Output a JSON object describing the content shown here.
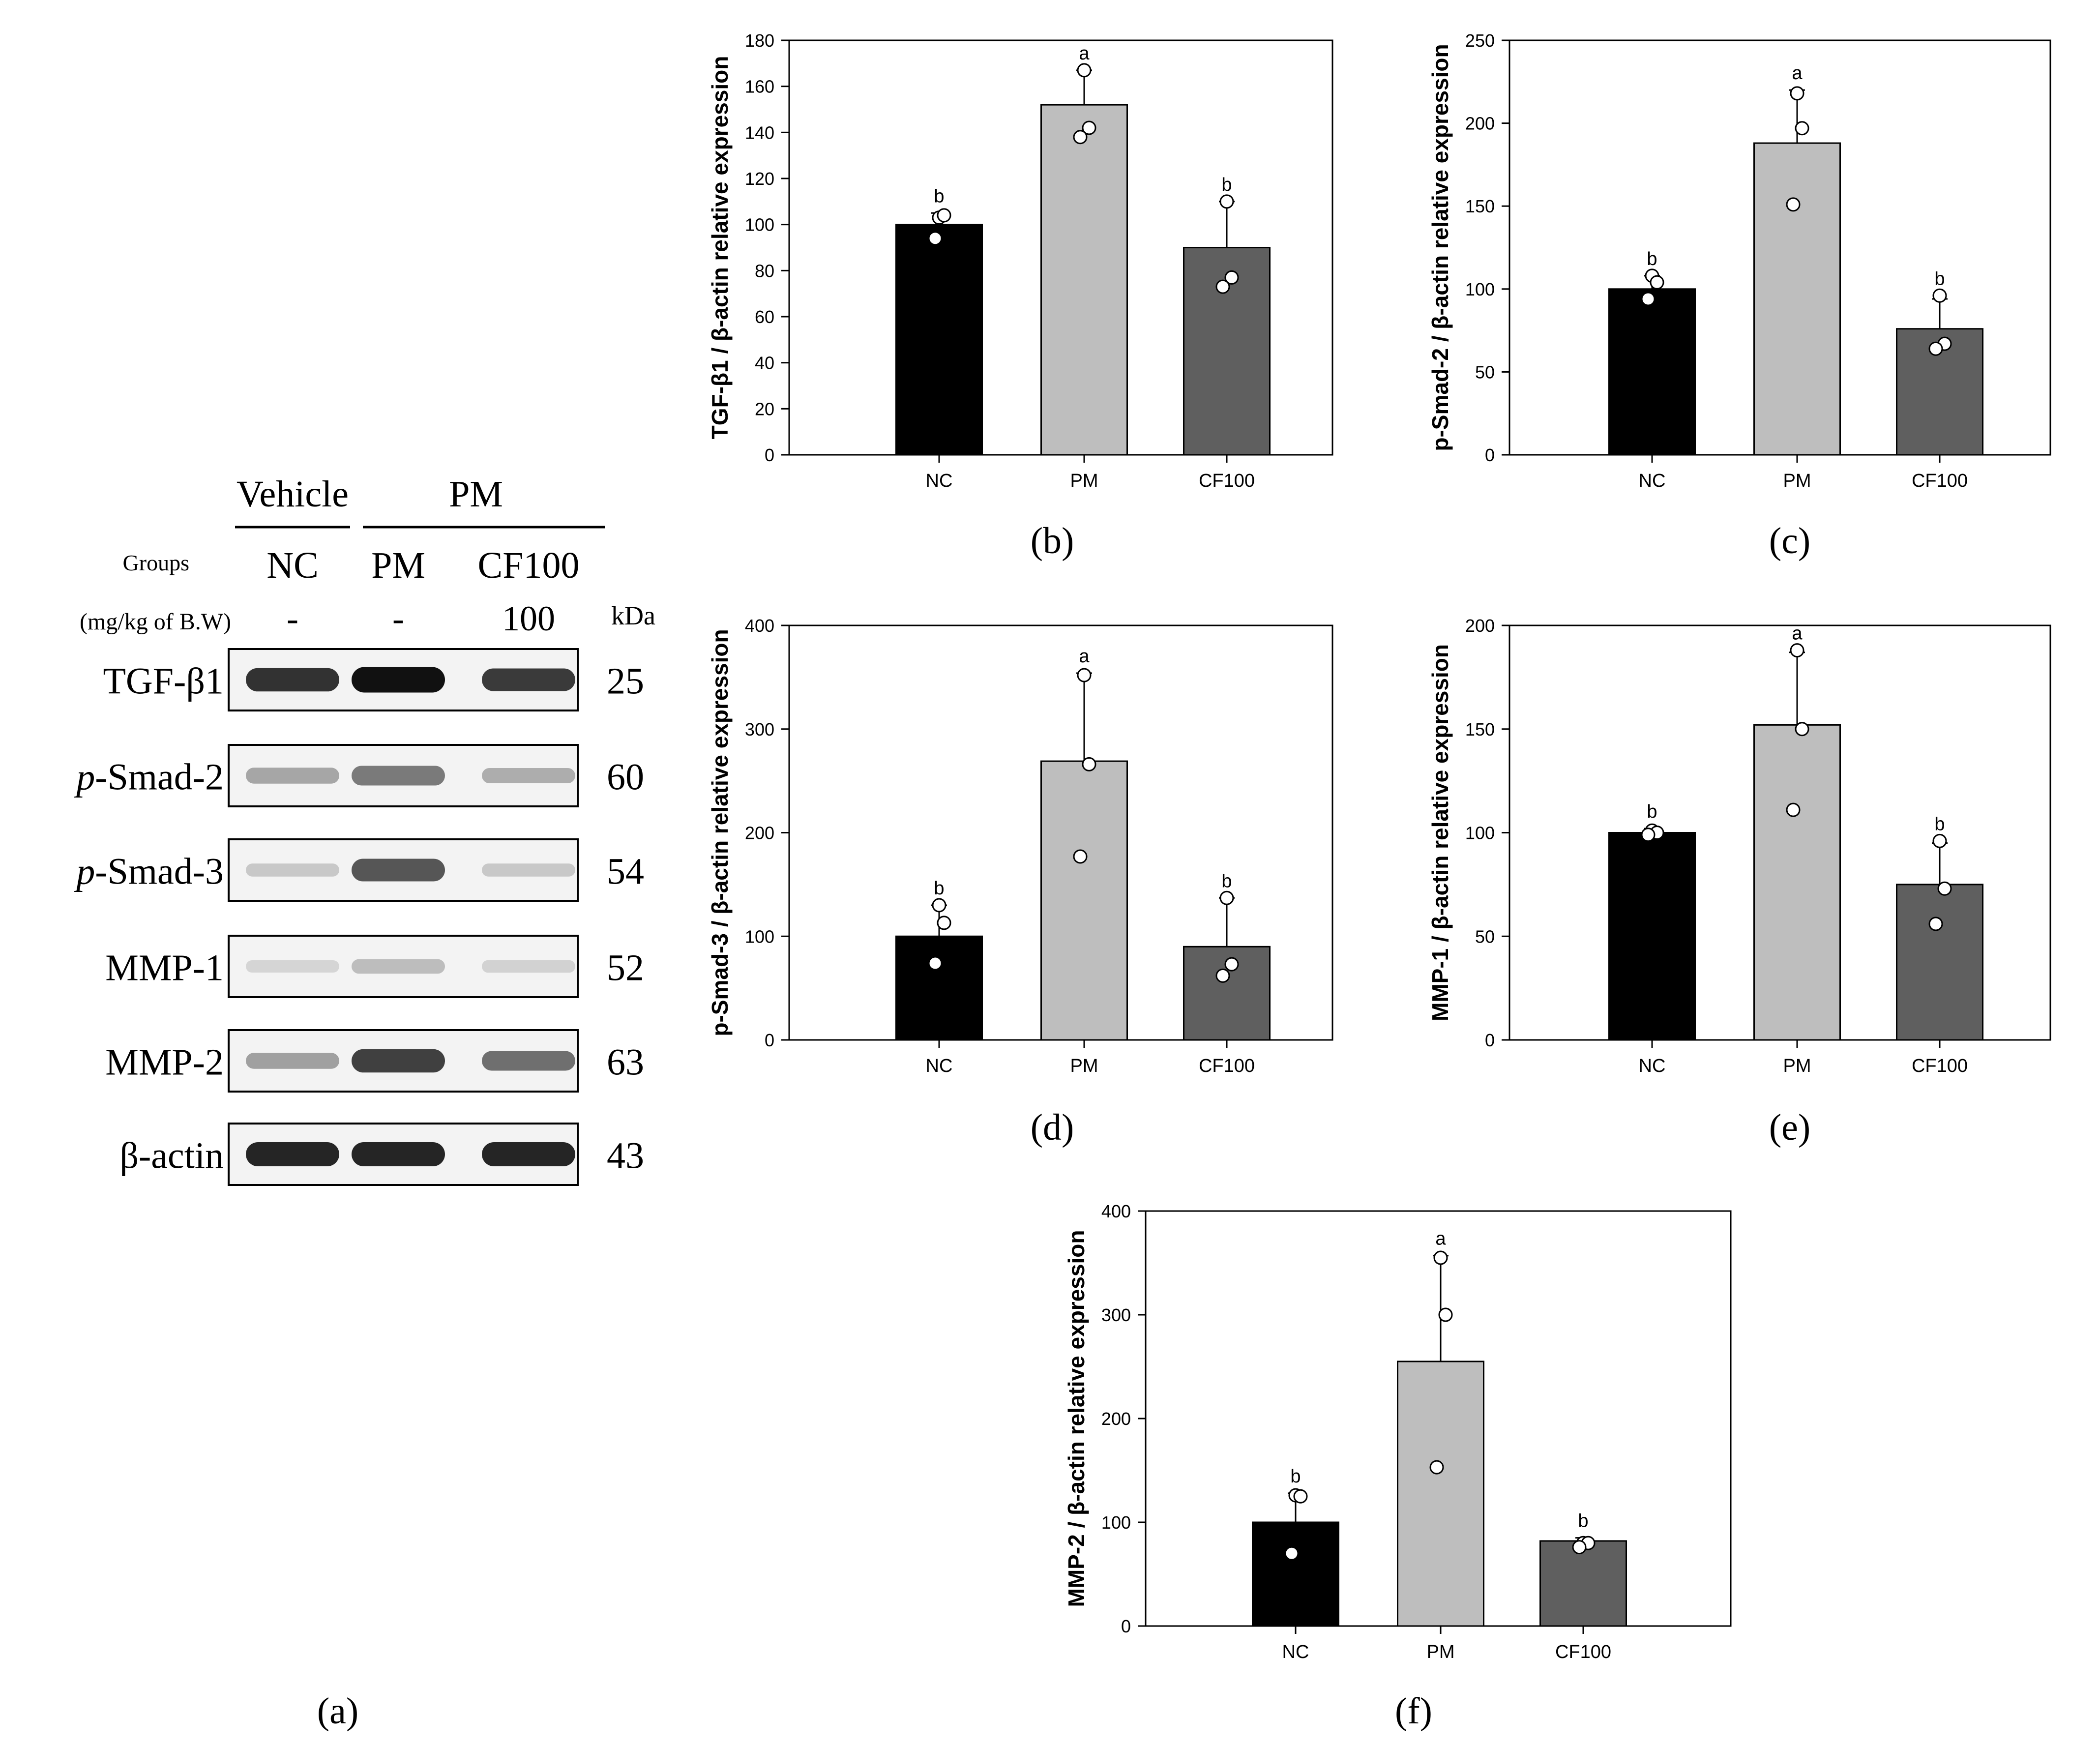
{
  "western_blot": {
    "header_vehicle": "Vehicle",
    "header_pm": "PM",
    "groups_label": "Groups",
    "dose_label": "(mg/kg of B.W)",
    "kda_label": "kDa",
    "lanes": [
      "NC",
      "PM",
      "CF100"
    ],
    "doses": [
      "-",
      "-",
      "100"
    ],
    "bands": [
      {
        "prefix": "",
        "name": "TGF-β1",
        "kda": "25",
        "intensity": [
          0.85,
          1.0,
          0.8
        ],
        "tone": "#111111"
      },
      {
        "prefix": "p",
        "name": "-Smad-2",
        "kda": "60",
        "intensity": [
          0.35,
          0.6,
          0.3
        ],
        "tone": "#333333"
      },
      {
        "prefix": "p",
        "name": "-Smad-3",
        "kda": "54",
        "intensity": [
          0.15,
          0.8,
          0.15
        ],
        "tone": "#333333"
      },
      {
        "prefix": "",
        "name": "MMP-1",
        "kda": "52",
        "intensity": [
          0.1,
          0.25,
          0.12
        ],
        "tone": "#444444"
      },
      {
        "prefix": "",
        "name": "MMP-2",
        "kda": "63",
        "intensity": [
          0.35,
          0.85,
          0.6
        ],
        "tone": "#222222"
      },
      {
        "prefix": "",
        "name": "β-actin",
        "kda": "43",
        "intensity": [
          0.9,
          0.9,
          0.9
        ],
        "tone": "#111111"
      }
    ],
    "panel_label": "(a)"
  },
  "chart_data": [
    {
      "id": "b",
      "type": "bar",
      "panel_label": "(b)",
      "title": "",
      "xlabel": "",
      "ylabel": "TGF-β1 / β-actin relative expression",
      "categories": [
        "NC",
        "PM",
        "CF100"
      ],
      "values": [
        100,
        152,
        90
      ],
      "errors": [
        5,
        15,
        20
      ],
      "points": [
        [
          103,
          104,
          94
        ],
        [
          167,
          142,
          138
        ],
        [
          110,
          77,
          73
        ]
      ],
      "letters": [
        "b",
        "a",
        "b"
      ],
      "ylim": [
        0,
        180
      ],
      "yticks": [
        0,
        20,
        40,
        60,
        80,
        100,
        120,
        140,
        160,
        180
      ],
      "colors": [
        "#000000",
        "#bebebe",
        "#5f5f5f"
      ]
    },
    {
      "id": "c",
      "type": "bar",
      "panel_label": "(c)",
      "title": "",
      "xlabel": "",
      "ylabel": "p-Smad-2 / β-actin relative expression",
      "categories": [
        "NC",
        "PM",
        "CF100"
      ],
      "values": [
        100,
        188,
        76
      ],
      "errors": [
        8,
        32,
        18
      ],
      "points": [
        [
          108,
          104,
          94
        ],
        [
          218,
          197,
          151
        ],
        [
          96,
          67,
          64
        ]
      ],
      "letters": [
        "b",
        "a",
        "b"
      ],
      "ylim": [
        0,
        250
      ],
      "yticks": [
        0,
        50,
        100,
        150,
        200,
        250
      ],
      "colors": [
        "#000000",
        "#bebebe",
        "#5f5f5f"
      ]
    },
    {
      "id": "d",
      "type": "bar",
      "panel_label": "(d)",
      "title": "",
      "xlabel": "",
      "ylabel": "p-Smad-3 / β-actin relative expression",
      "categories": [
        "NC",
        "PM",
        "CF100"
      ],
      "values": [
        100,
        269,
        90
      ],
      "errors": [
        30,
        85,
        47
      ],
      "points": [
        [
          130,
          113,
          74
        ],
        [
          352,
          266,
          177
        ],
        [
          137,
          73,
          62
        ]
      ],
      "letters": [
        "b",
        "a",
        "b"
      ],
      "ylim": [
        0,
        400
      ],
      "yticks": [
        0,
        100,
        200,
        300,
        400
      ],
      "colors": [
        "#000000",
        "#bebebe",
        "#5f5f5f"
      ]
    },
    {
      "id": "e",
      "type": "bar",
      "panel_label": "(e)",
      "title": "",
      "xlabel": "",
      "ylabel": "MMP-1 / β-actin relative expression",
      "categories": [
        "NC",
        "PM",
        "CF100"
      ],
      "values": [
        100,
        152,
        75
      ],
      "errors": [
        2,
        35,
        20
      ],
      "points": [
        [
          101,
          100,
          99
        ],
        [
          188,
          150,
          111
        ],
        [
          96,
          73,
          56
        ]
      ],
      "letters": [
        "b",
        "a",
        "b"
      ],
      "ylim": [
        0,
        200
      ],
      "yticks": [
        0,
        50,
        100,
        150,
        200
      ],
      "colors": [
        "#000000",
        "#bebebe",
        "#5f5f5f"
      ]
    },
    {
      "id": "f",
      "type": "bar",
      "panel_label": "(f)",
      "title": "",
      "xlabel": "",
      "ylabel": "MMP-2 / β-actin relative expression",
      "categories": [
        "NC",
        "PM",
        "CF100"
      ],
      "values": [
        100,
        255,
        82
      ],
      "errors": [
        28,
        102,
        3
      ],
      "points": [
        [
          126,
          125,
          70
        ],
        [
          355,
          300,
          153
        ],
        [
          80,
          80,
          76
        ]
      ],
      "letters": [
        "b",
        "a",
        "b"
      ],
      "ylim": [
        0,
        400
      ],
      "yticks": [
        0,
        100,
        200,
        300,
        400
      ],
      "colors": [
        "#000000",
        "#bebebe",
        "#5f5f5f"
      ]
    }
  ]
}
